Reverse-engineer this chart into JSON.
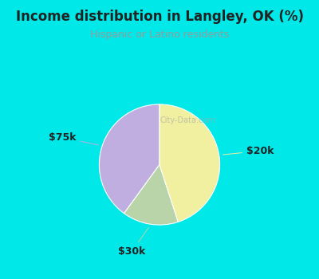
{
  "title": "Income distribution in Langley, OK (%)",
  "subtitle": "Hispanic or Latino residents",
  "watermark": "City-Data.com",
  "slices": [
    {
      "label": "$75k",
      "value": 40,
      "color": "#c0aee0"
    },
    {
      "label": "$30k",
      "value": 15,
      "color": "#b8d4a8"
    },
    {
      "label": "$20k",
      "value": 45,
      "color": "#f0f0a0"
    }
  ],
  "outer_bg": "#00e8e8",
  "inner_bg": "#d4ede4",
  "title_color": "#222222",
  "subtitle_color": "#999999",
  "watermark_color": "#aaaaaa",
  "label_color": "#222222",
  "label_fontsize": 9,
  "title_fontsize": 12,
  "subtitle_fontsize": 9,
  "startangle": 90
}
